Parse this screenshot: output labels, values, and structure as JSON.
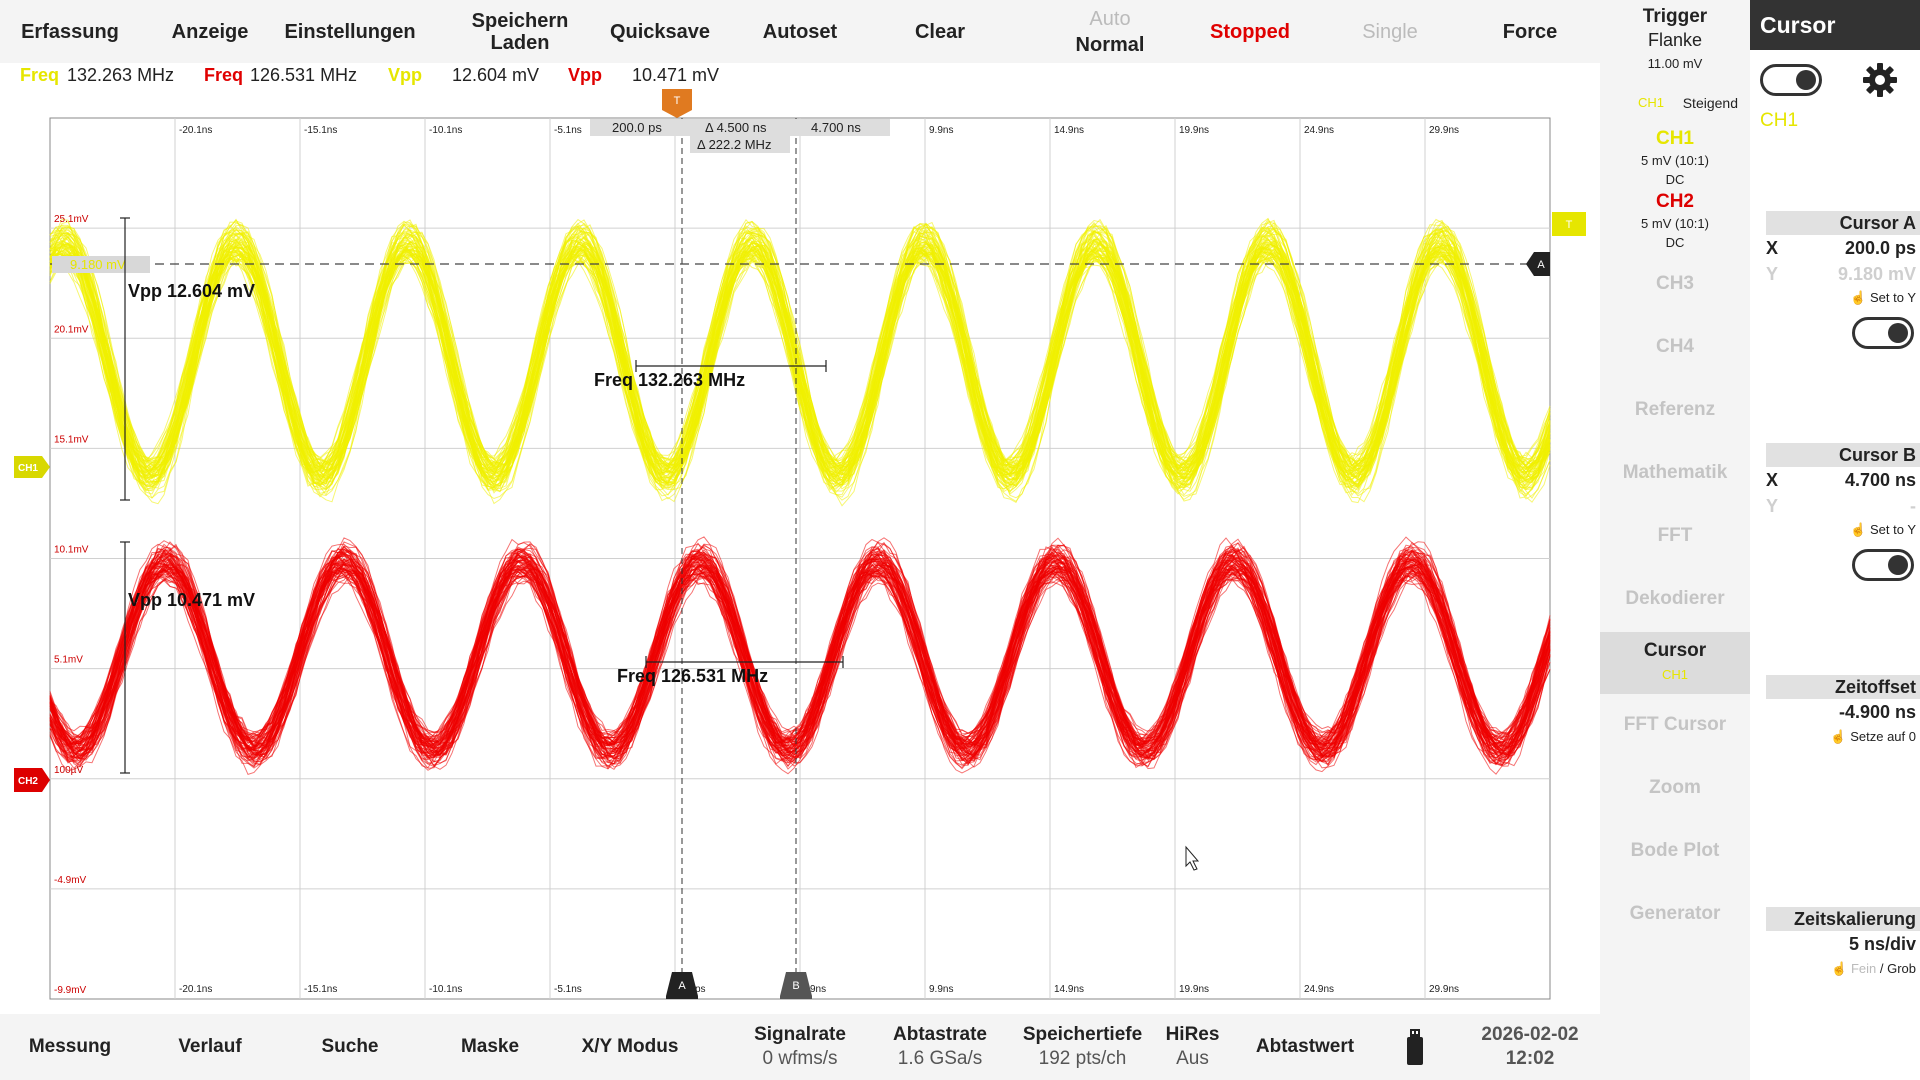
{
  "menu": {
    "erfassung": "Erfassung",
    "anzeige": "Anzeige",
    "einstellungen": "Einstellungen",
    "speichern": "Speichern",
    "laden": "Laden",
    "quicksave": "Quicksave",
    "autoset": "Autoset",
    "clear": "Clear",
    "auto": "Auto",
    "normal": "Normal",
    "stopped": "Stopped",
    "single": "Single",
    "force": "Force"
  },
  "measurements": {
    "ch1_freq_label": "Freq",
    "ch1_freq_value": "132.263 MHz",
    "ch2_freq_label": "Freq",
    "ch2_freq_value": "126.531 MHz",
    "ch1_vpp_label": "Vpp",
    "ch1_vpp_value": "12.604 mV",
    "ch2_vpp_label": "Vpp",
    "ch2_vpp_value": "10.471 mV"
  },
  "plot": {
    "x_ticks_top": [
      "-20.1ns",
      "-15.1ns",
      "-10.1ns",
      "-5.1ns",
      "",
      "",
      "9.9ns",
      "14.9ns",
      "19.9ns",
      "24.9ns",
      "29.9ns"
    ],
    "x_ticks_bottom": [
      "-20.1ns",
      "-15.1ns",
      "-10.1ns",
      "-5.1ns",
      "",
      "",
      "9.9ns",
      "14.9ns",
      "19.9ns",
      "24.9ns",
      "29.9ns"
    ],
    "bottom_fragment_a": "ps",
    "bottom_fragment_b": "9ns",
    "y_ticks": [
      "25.1mV",
      "20.1mV",
      "15.1mV",
      "10.1mV",
      "5.1mV",
      "100µV",
      "-4.9mV",
      "-9.9mV"
    ],
    "trigger_marker": "T",
    "trigger_level_marker": "T",
    "ch1_marker": "CH1",
    "ch2_marker": "CH2",
    "cursor_a_marker": "A",
    "cursor_b_marker": "B",
    "cursor_a_time": "200.0 ps",
    "cursor_delta_time": "Δ 4.500 ns",
    "cursor_b_time": "4.700 ns",
    "cursor_delta_freq": "Δ 222.2 MHz",
    "cursor_a_level": "9.180 mV",
    "ch1_vpp_annotation": "Vpp 12.604 mV",
    "ch2_vpp_annotation": "Vpp 10.471 mV",
    "ch1_freq_annotation": "Freq 132.263 MHz",
    "ch2_freq_annotation": "Freq 126.531 MHz"
  },
  "bottom": {
    "messung": "Messung",
    "verlauf": "Verlauf",
    "suche": "Suche",
    "maske": "Maske",
    "xy": "X/Y Modus",
    "signalrate_label": "Signalrate",
    "signalrate_value": "0 wfms/s",
    "abtastrate_label": "Abtastrate",
    "abtastrate_value": "1.6 GSa/s",
    "speichertiefe_label": "Speichertiefe",
    "speichertiefe_value": "192 pts/ch",
    "hires_label": "HiRes",
    "hires_value": "Aus",
    "abtastwert": "Abtastwert",
    "date": "2026-02-02",
    "time": "12:02"
  },
  "channel_panel": {
    "trigger_title": "Trigger",
    "trigger_type": "Flanke",
    "trigger_level": "11.00 mV",
    "trigger_source": "CH1",
    "trigger_slope": "Steigend",
    "ch1_name": "CH1",
    "ch1_scale": "5 mV (10:1)",
    "ch1_coupling": "DC",
    "ch2_name": "CH2",
    "ch2_scale": "5 mV (10:1)",
    "ch2_coupling": "DC",
    "ch3": "CH3",
    "ch4": "CH4",
    "referenz": "Referenz",
    "mathematik": "Mathematik",
    "fft": "FFT",
    "dekodierer": "Dekodierer",
    "cursor": "Cursor",
    "cursor_source": "CH1",
    "fft_cursor": "FFT Cursor",
    "zoom": "Zoom",
    "bode": "Bode Plot",
    "generator": "Generator"
  },
  "cursor_panel": {
    "title": "Cursor",
    "source": "CH1",
    "cursor_a_title": "Cursor A",
    "a_x_label": "X",
    "a_x_value": "200.0 ps",
    "a_y_label": "Y",
    "a_y_value": "9.180 mV",
    "a_set_to_y": "Set to Y",
    "cursor_b_title": "Cursor B",
    "b_x_label": "X",
    "b_x_value": "4.700 ns",
    "b_y_label": "Y",
    "b_y_value": "-",
    "b_set_to_y": "Set to Y",
    "zeitoffset_title": "Zeitoffset",
    "zeitoffset_value": "-4.900 ns",
    "setze_auf_0": "Setze auf 0",
    "zeitskalierung_title": "Zeitskalierung",
    "zeitskalierung_value": "5 ns/div",
    "fein": "Fein",
    "grob": "/ Grob"
  },
  "colors": {
    "ch1": "#f0f000",
    "ch2": "#ee0000",
    "trigger": "#e07a20"
  }
}
